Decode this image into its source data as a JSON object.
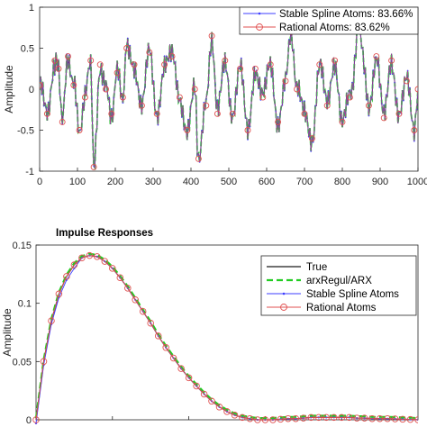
{
  "chart_data": [
    {
      "type": "line",
      "title": "",
      "ylabel": "Amplitude",
      "xlabel": "",
      "xlim": [
        0,
        1000
      ],
      "ylim": [
        -1,
        1
      ],
      "xticks": [
        "0",
        "100",
        "200",
        "300",
        "400",
        "500",
        "600",
        "700",
        "800",
        "900",
        "1000"
      ],
      "yticks": [
        "1",
        "0.5",
        "0",
        "-0.5",
        "-1"
      ],
      "legend_position": "top-right",
      "series": [
        {
          "name": "Stable Spline Atoms: 83.66%",
          "color": "#3d3dff",
          "marker": "dot",
          "style": "solid"
        },
        {
          "name": "Rational Atoms: 83.62%",
          "color": "#e05050",
          "marker": "circle",
          "style": "solid"
        }
      ],
      "hidden_series": [
        {
          "color": "#1a1a1a",
          "style": "solid"
        },
        {
          "color": "#22cc22",
          "style": "dashed"
        }
      ],
      "x": [
        0,
        20,
        40,
        50,
        60,
        75,
        90,
        105,
        120,
        135,
        143,
        160,
        175,
        190,
        205,
        220,
        230,
        250,
        270,
        290,
        310,
        330,
        350,
        370,
        390,
        410,
        420,
        440,
        455,
        470,
        490,
        510,
        530,
        550,
        570,
        590,
        610,
        630,
        650,
        665,
        680,
        700,
        720,
        740,
        760,
        780,
        800,
        820,
        845,
        870,
        890,
        910,
        930,
        950,
        970,
        990,
        1000
      ],
      "y": [
        0.05,
        -0.3,
        0.35,
        0.25,
        -0.4,
        0.4,
        0.05,
        -0.5,
        -0.1,
        0.35,
        -0.95,
        0.3,
        0.0,
        -0.3,
        0.2,
        -0.1,
        0.5,
        0.3,
        -0.2,
        0.45,
        -0.3,
        0.3,
        0.4,
        -0.1,
        -0.5,
        0.0,
        -0.85,
        -0.2,
        0.65,
        -0.3,
        0.35,
        -0.3,
        0.25,
        -0.5,
        0.25,
        -0.1,
        0.3,
        -0.4,
        0.1,
        0.7,
        0.0,
        -0.3,
        -0.6,
        0.3,
        -0.2,
        0.35,
        -0.4,
        -0.1,
        0.75,
        -0.2,
        0.4,
        -0.35,
        0.35,
        -0.3,
        0.1,
        -0.5,
        0.0
      ]
    },
    {
      "type": "line",
      "title": "Impulse Responses",
      "ylabel": "Amplitude",
      "xlabel": "",
      "xlim": [
        0,
        50
      ],
      "ylim": [
        0,
        0.15
      ],
      "xticks": [],
      "yticks": [
        "0.15",
        "0.1",
        "0.05",
        "0"
      ],
      "legend_position": "top-right",
      "series": [
        {
          "name": "True",
          "color": "#1a1a1a",
          "style": "solid",
          "marker": "none"
        },
        {
          "name": "arxRegul/ARX",
          "color": "#22cc22",
          "style": "dashed",
          "marker": "none"
        },
        {
          "name": "Stable Spline Atoms",
          "color": "#3d3dff",
          "style": "solid",
          "marker": "dot"
        },
        {
          "name": "Rational Atoms",
          "color": "#e05050",
          "style": "solid",
          "marker": "circle"
        }
      ],
      "x": [
        0,
        1,
        2,
        3,
        4,
        5,
        6,
        7,
        8,
        9,
        10,
        11,
        12,
        13,
        14,
        15,
        16,
        17,
        18,
        19,
        20,
        21,
        22,
        23,
        24,
        25,
        26,
        27,
        28,
        29,
        30,
        31,
        32,
        33,
        34,
        35,
        36,
        37,
        38,
        39,
        40,
        41,
        42,
        43,
        44,
        45,
        46,
        47,
        48,
        49,
        50
      ],
      "y": [
        0.0,
        0.05,
        0.085,
        0.108,
        0.123,
        0.133,
        0.139,
        0.141,
        0.14,
        0.136,
        0.13,
        0.122,
        0.113,
        0.103,
        0.093,
        0.083,
        0.072,
        0.062,
        0.053,
        0.044,
        0.036,
        0.029,
        0.022,
        0.016,
        0.011,
        0.007,
        0.004,
        0.002,
        0.001,
        0.0,
        0.0,
        0.0,
        0.0005,
        0.001,
        0.001,
        0.0015,
        0.002,
        0.002,
        0.002,
        0.002,
        0.002,
        0.002,
        0.0015,
        0.0015,
        0.001,
        0.001,
        0.001,
        0.0008,
        0.0005,
        0.0003,
        0.0
      ]
    }
  ]
}
